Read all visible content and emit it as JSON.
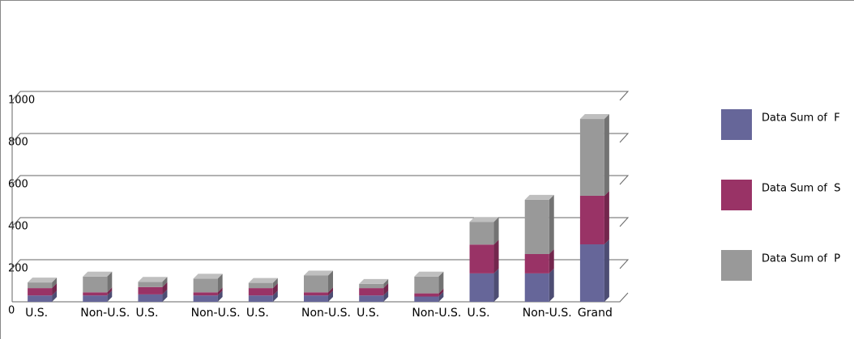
{
  "chart_data": {
    "type": "bar",
    "stacked": true,
    "categories": [
      "U.S.",
      "Non-U.S.",
      "U.S.",
      "Non-U.S.",
      "U.S.",
      "Non-U.S.",
      "U.S.",
      "Non-U.S.",
      "U.S.",
      "Non-U.S.",
      "Grand"
    ],
    "series": [
      {
        "name": "Data Sum of  F",
        "color": "#666699",
        "values": [
          30,
          30,
          35,
          30,
          30,
          30,
          30,
          25,
          135,
          135,
          273
        ]
      },
      {
        "name": "Data Sum of  S",
        "color": "#993366",
        "values": [
          35,
          15,
          35,
          15,
          35,
          15,
          35,
          15,
          137,
          92,
          231
        ]
      },
      {
        "name": "Data Sum of  P",
        "color": "#999999",
        "values": [
          27,
          75,
          25,
          65,
          25,
          80,
          20,
          80,
          108,
          258,
          365
        ]
      }
    ],
    "ylim": [
      0,
      1000
    ],
    "yticks": [
      0,
      200,
      400,
      600,
      800,
      1000
    ],
    "grid": true,
    "legend": "right"
  }
}
